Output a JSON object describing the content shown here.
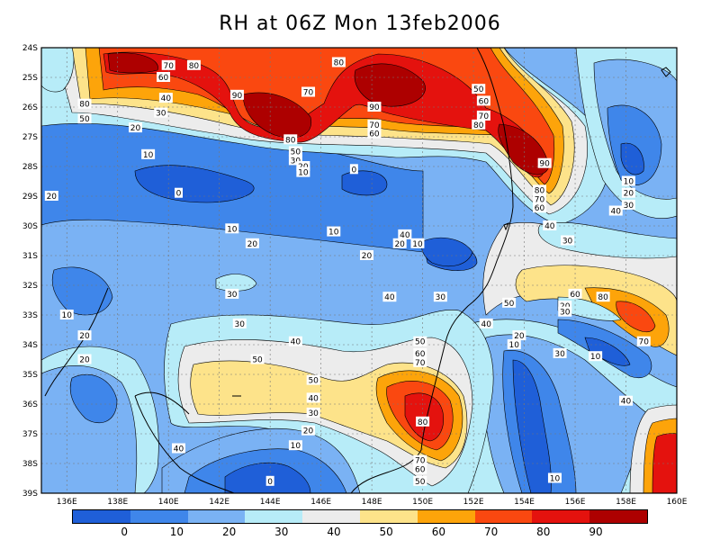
{
  "title": "RH at 06Z Mon 13feb2006",
  "colors": {
    "bands": [
      "#1f5fd8",
      "#3f86ea",
      "#7ab2f4",
      "#b7ecf8",
      "#ececec",
      "#fde38a",
      "#fda40a",
      "#fa4810",
      "#e4120e",
      "#ad0000"
    ],
    "land_outline": "#000000",
    "grid": "#777777"
  },
  "chart_data": {
    "type": "heatmap",
    "variable": "RH",
    "lon_ticks": [
      "136E",
      "138E",
      "140E",
      "142E",
      "144E",
      "146E",
      "148E",
      "150E",
      "152E",
      "154E",
      "156E",
      "158E",
      "160E"
    ],
    "lat_ticks": [
      "24S",
      "25S",
      "26S",
      "27S",
      "28S",
      "29S",
      "30S",
      "31S",
      "32S",
      "33S",
      "34S",
      "35S",
      "36S",
      "37S",
      "38S",
      "39S"
    ],
    "lon_range": [
      135,
      160
    ],
    "lat_range": [
      -39,
      -24
    ],
    "colorbar_labels": [
      "0",
      "10",
      "20",
      "30",
      "40",
      "50",
      "60",
      "70",
      "80",
      "90"
    ],
    "contour_labels": [
      {
        "text": "80",
        "lon": 136.7,
        "lat": -25.9
      },
      {
        "text": "50",
        "lon": 136.7,
        "lat": -26.4
      },
      {
        "text": "70",
        "lon": 140.0,
        "lat": -24.6
      },
      {
        "text": "80",
        "lon": 141.0,
        "lat": -24.6
      },
      {
        "text": "60",
        "lon": 139.8,
        "lat": -25.0
      },
      {
        "text": "40",
        "lon": 139.9,
        "lat": -25.7
      },
      {
        "text": "30",
        "lon": 139.7,
        "lat": -26.2
      },
      {
        "text": "20",
        "lon": 138.7,
        "lat": -26.7
      },
      {
        "text": "90",
        "lon": 142.7,
        "lat": -25.6
      },
      {
        "text": "80",
        "lon": 144.8,
        "lat": -27.1
      },
      {
        "text": "70",
        "lon": 145.5,
        "lat": -25.5
      },
      {
        "text": "80",
        "lon": 146.7,
        "lat": -24.5
      },
      {
        "text": "90",
        "lon": 148.1,
        "lat": -26.0
      },
      {
        "text": "70",
        "lon": 148.1,
        "lat": -26.6
      },
      {
        "text": "60",
        "lon": 148.1,
        "lat": -26.9
      },
      {
        "text": "50",
        "lon": 145.0,
        "lat": -27.5
      },
      {
        "text": "30",
        "lon": 145.0,
        "lat": -27.8
      },
      {
        "text": "20",
        "lon": 145.3,
        "lat": -28.0
      },
      {
        "text": "10",
        "lon": 145.3,
        "lat": -28.2
      },
      {
        "text": "0",
        "lon": 147.3,
        "lat": -28.1
      },
      {
        "text": "10",
        "lon": 139.2,
        "lat": -27.6
      },
      {
        "text": "0",
        "lon": 140.4,
        "lat": -28.9
      },
      {
        "text": "20",
        "lon": 135.4,
        "lat": -29.0
      },
      {
        "text": "10",
        "lon": 142.5,
        "lat": -30.1
      },
      {
        "text": "20",
        "lon": 143.3,
        "lat": -30.6
      },
      {
        "text": "10",
        "lon": 146.5,
        "lat": -30.2
      },
      {
        "text": "20",
        "lon": 147.8,
        "lat": -31.0
      },
      {
        "text": "40",
        "lon": 149.3,
        "lat": -30.3
      },
      {
        "text": "20",
        "lon": 149.1,
        "lat": -30.6
      },
      {
        "text": "10",
        "lon": 149.8,
        "lat": -30.6
      },
      {
        "text": "50",
        "lon": 152.2,
        "lat": -25.4
      },
      {
        "text": "60",
        "lon": 152.4,
        "lat": -25.8
      },
      {
        "text": "70",
        "lon": 152.4,
        "lat": -26.3
      },
      {
        "text": "80",
        "lon": 152.2,
        "lat": -26.6
      },
      {
        "text": "90",
        "lon": 154.8,
        "lat": -27.9
      },
      {
        "text": "80",
        "lon": 154.6,
        "lat": -28.8
      },
      {
        "text": "70",
        "lon": 154.6,
        "lat": -29.1
      },
      {
        "text": "60",
        "lon": 154.6,
        "lat": -29.4
      },
      {
        "text": "40",
        "lon": 155.0,
        "lat": -30.0
      },
      {
        "text": "30",
        "lon": 155.7,
        "lat": -30.5
      },
      {
        "text": "10",
        "lon": 158.1,
        "lat": -28.5
      },
      {
        "text": "20",
        "lon": 158.1,
        "lat": -28.9
      },
      {
        "text": "30",
        "lon": 158.1,
        "lat": -29.3
      },
      {
        "text": "40",
        "lon": 157.6,
        "lat": -29.5
      },
      {
        "text": "30",
        "lon": 142.5,
        "lat": -32.3
      },
      {
        "text": "10",
        "lon": 136.0,
        "lat": -33.0
      },
      {
        "text": "40",
        "lon": 148.7,
        "lat": -32.4
      },
      {
        "text": "30",
        "lon": 150.7,
        "lat": -32.4
      },
      {
        "text": "50",
        "lon": 153.4,
        "lat": -32.6
      },
      {
        "text": "60",
        "lon": 156.0,
        "lat": -32.3
      },
      {
        "text": "80",
        "lon": 157.1,
        "lat": -32.4
      },
      {
        "text": "20",
        "lon": 155.6,
        "lat": -32.7
      },
      {
        "text": "30",
        "lon": 155.6,
        "lat": -32.9
      },
      {
        "text": "40",
        "lon": 152.5,
        "lat": -33.3
      },
      {
        "text": "70",
        "lon": 158.7,
        "lat": -33.9
      },
      {
        "text": "30",
        "lon": 142.8,
        "lat": -33.3
      },
      {
        "text": "20",
        "lon": 136.7,
        "lat": -33.7
      },
      {
        "text": "40",
        "lon": 145.0,
        "lat": -33.9
      },
      {
        "text": "20",
        "lon": 153.8,
        "lat": -33.7
      },
      {
        "text": "10",
        "lon": 153.6,
        "lat": -34.0
      },
      {
        "text": "30",
        "lon": 155.4,
        "lat": -34.3
      },
      {
        "text": "10",
        "lon": 156.8,
        "lat": -34.4
      },
      {
        "text": "20",
        "lon": 136.7,
        "lat": -34.5
      },
      {
        "text": "50",
        "lon": 143.5,
        "lat": -34.5
      },
      {
        "text": "50",
        "lon": 149.9,
        "lat": -33.9
      },
      {
        "text": "60",
        "lon": 149.9,
        "lat": -34.3
      },
      {
        "text": "70",
        "lon": 149.9,
        "lat": -34.6
      },
      {
        "text": "50",
        "lon": 145.7,
        "lat": -35.2
      },
      {
        "text": "40",
        "lon": 145.7,
        "lat": -35.8
      },
      {
        "text": "40",
        "lon": 158.0,
        "lat": -35.9
      },
      {
        "text": "30",
        "lon": 145.7,
        "lat": -36.3
      },
      {
        "text": "20",
        "lon": 145.5,
        "lat": -36.9
      },
      {
        "text": "80",
        "lon": 150.0,
        "lat": -36.6
      },
      {
        "text": "10",
        "lon": 145.0,
        "lat": -37.4
      },
      {
        "text": "40",
        "lon": 140.4,
        "lat": -37.5
      },
      {
        "text": "70",
        "lon": 149.9,
        "lat": -37.9
      },
      {
        "text": "60",
        "lon": 149.9,
        "lat": -38.2
      },
      {
        "text": "50",
        "lon": 149.9,
        "lat": -38.6
      },
      {
        "text": "0",
        "lon": 144.0,
        "lat": -38.6
      },
      {
        "text": "10",
        "lon": 155.2,
        "lat": -38.5
      }
    ]
  }
}
